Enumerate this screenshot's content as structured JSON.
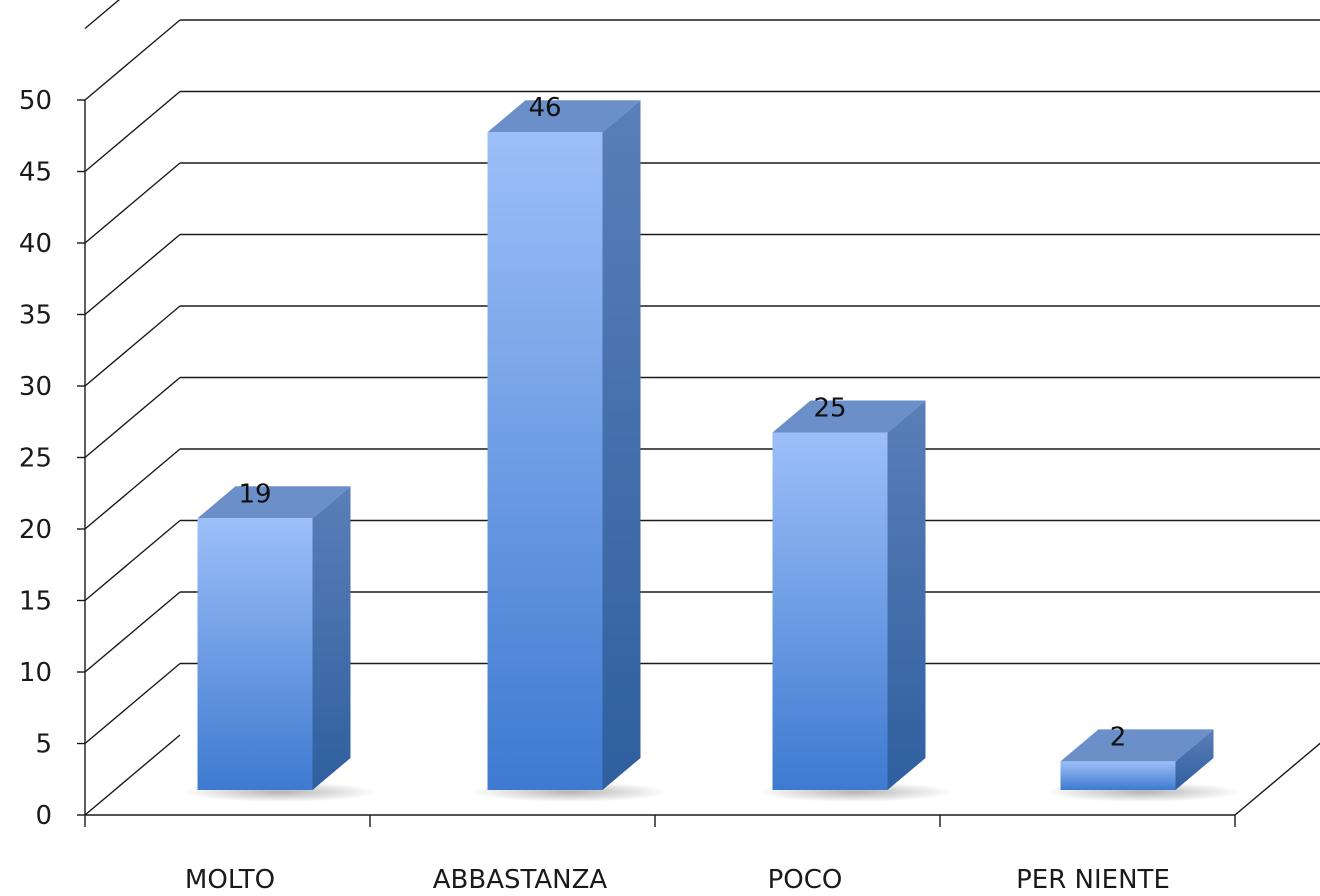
{
  "chart_data": {
    "type": "bar",
    "categories": [
      "MOLTO",
      "ABBASTANZA",
      "POCO",
      "PER NIENTE"
    ],
    "values": [
      19,
      46,
      25,
      2
    ],
    "data_labels": [
      "19",
      "46",
      "25",
      "2"
    ],
    "title": "",
    "xlabel": "",
    "ylabel": "",
    "ylim": [
      0,
      50
    ],
    "ytick_step": 5,
    "yticks": [
      "0",
      "5",
      "10",
      "15",
      "20",
      "25",
      "30",
      "35",
      "40",
      "45",
      "50"
    ],
    "grid": true,
    "style": "3d-column",
    "legend": "none",
    "colors": {
      "bar_top": "#9dbff8",
      "bar_bottom": "#3e7ad0",
      "bar_side": "#2f5f9f",
      "bar_cap": "#6b8fc9",
      "grid": "#1a1a1a"
    }
  }
}
